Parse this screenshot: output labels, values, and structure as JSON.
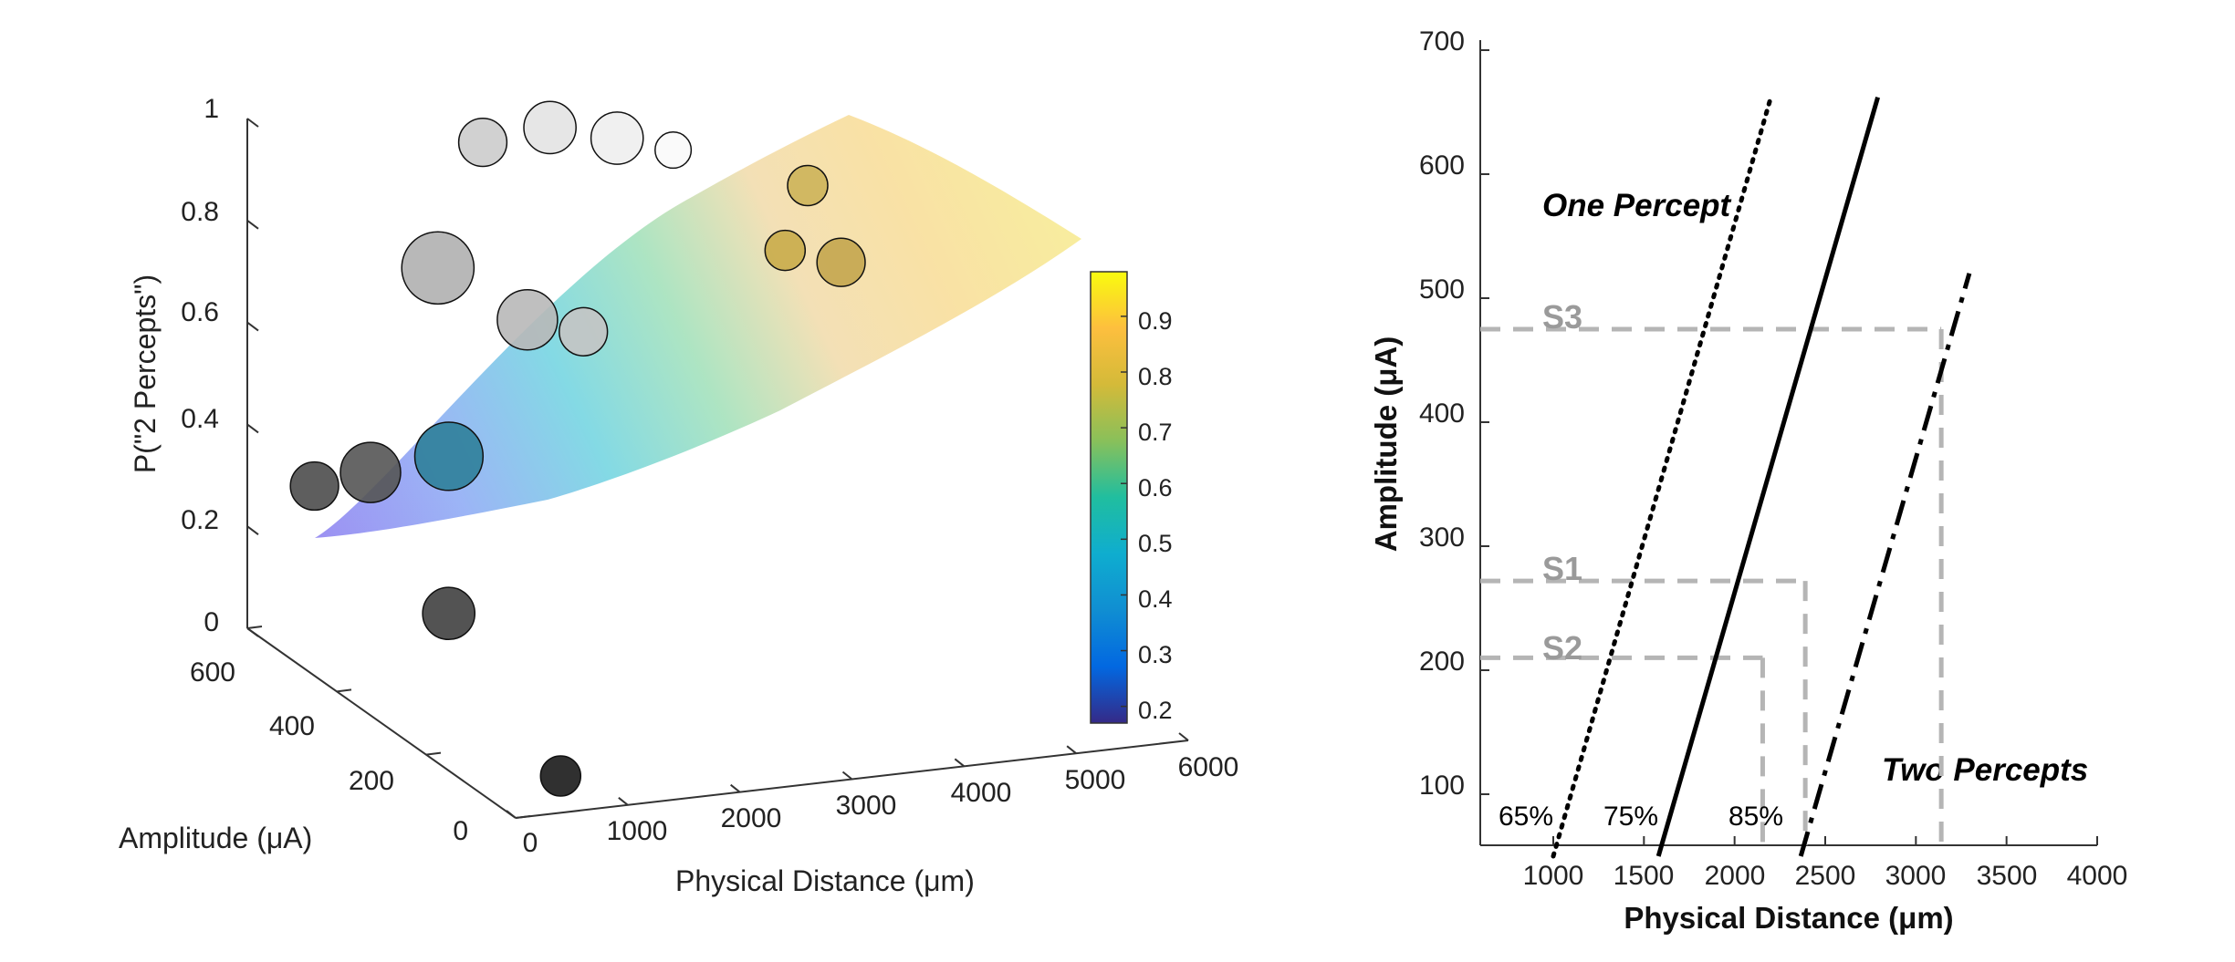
{
  "chart_data": [
    {
      "type": "surface3d",
      "title": "",
      "xlabel": "Physical Distance (μm)",
      "ylabel": "Amplitude (μA)",
      "zlabel": "P(\"2 Percepts\")",
      "xlim": [
        0,
        6000
      ],
      "ylim": [
        0,
        600
      ],
      "zlim": [
        0,
        1
      ],
      "x_ticks": [
        "0",
        "1000",
        "2000",
        "3000",
        "4000",
        "5000",
        "6000"
      ],
      "y_ticks": [
        "0",
        "200",
        "400",
        "600"
      ],
      "z_ticks": [
        "0",
        "0.2",
        "0.4",
        "0.6",
        "0.8",
        "1"
      ],
      "colorbar": {
        "colormap": "parula",
        "range": [
          0.17,
          0.98
        ],
        "ticks": [
          "0.2",
          "0.3",
          "0.4",
          "0.5",
          "0.6",
          "0.7",
          "0.8",
          "0.9"
        ]
      },
      "points": [
        {
          "x": 800,
          "y": 100,
          "z": 0.0,
          "size": 1.0,
          "color": "#1a1a1a"
        },
        {
          "x": 600,
          "y": 300,
          "z": 0.2,
          "size": 1.3,
          "color": "#404040"
        },
        {
          "x": 400,
          "y": 550,
          "z": 0.3,
          "size": 1.2,
          "color": "#4d4d4d"
        },
        {
          "x": 700,
          "y": 500,
          "z": 0.35,
          "size": 1.5,
          "color": "#555555"
        },
        {
          "x": 1200,
          "y": 450,
          "z": 0.4,
          "size": 1.7,
          "color": "#2f7f9a"
        },
        {
          "x": 1500,
          "y": 550,
          "z": 0.7,
          "size": 1.8,
          "color": "#b0b0b0"
        },
        {
          "x": 1900,
          "y": 450,
          "z": 0.65,
          "size": 1.5,
          "color": "#b8b8b8"
        },
        {
          "x": 2200,
          "y": 400,
          "z": 0.65,
          "size": 1.2,
          "color": "#c4c4c4"
        },
        {
          "x": 2100,
          "y": 600,
          "z": 0.9,
          "size": 1.2,
          "color": "#cccccc"
        },
        {
          "x": 2500,
          "y": 550,
          "z": 0.95,
          "size": 1.3,
          "color": "#e3e3e3"
        },
        {
          "x": 2900,
          "y": 500,
          "z": 0.95,
          "size": 1.3,
          "color": "#eeeeee"
        },
        {
          "x": 3200,
          "y": 450,
          "z": 0.95,
          "size": 0.9,
          "color": "#fafafa"
        },
        {
          "x": 3800,
          "y": 350,
          "z": 0.8,
          "size": 1.0,
          "color": "#c9ac4a"
        },
        {
          "x": 4100,
          "y": 300,
          "z": 0.8,
          "size": 1.2,
          "color": "#c4a64f"
        },
        {
          "x": 4400,
          "y": 450,
          "z": 0.85,
          "size": 1.0,
          "color": "#cdb45a"
        }
      ]
    },
    {
      "type": "line",
      "title": "",
      "xlabel": "Physical Distance (μm)",
      "ylabel": "Amplitude (μA)",
      "xlim": [
        600,
        4000
      ],
      "ylim": [
        50,
        700
      ],
      "x_ticks": [
        1000,
        1500,
        2000,
        2500,
        3000,
        3500,
        4000
      ],
      "y_ticks": [
        100,
        200,
        300,
        400,
        500,
        600,
        700
      ],
      "grid": false,
      "region_labels": {
        "upper_left": "One Percept",
        "lower_right": "Two Percepts"
      },
      "series": [
        {
          "name": "65%",
          "style": "dotted",
          "x": [
            1000,
            2200
          ],
          "y": [
            50,
            662
          ]
        },
        {
          "name": "75%",
          "style": "solid",
          "x": [
            1580,
            2790
          ],
          "y": [
            50,
            662
          ]
        },
        {
          "name": "85%",
          "style": "dashdot",
          "x": [
            2365,
            3295
          ],
          "y": [
            50,
            520
          ]
        }
      ],
      "subjects": [
        {
          "label": "S3",
          "amplitude": 475,
          "distance": 3140
        },
        {
          "label": "S1",
          "amplitude": 272,
          "distance": 2390
        },
        {
          "label": "S2",
          "amplitude": 210,
          "distance": 2155
        }
      ]
    }
  ]
}
